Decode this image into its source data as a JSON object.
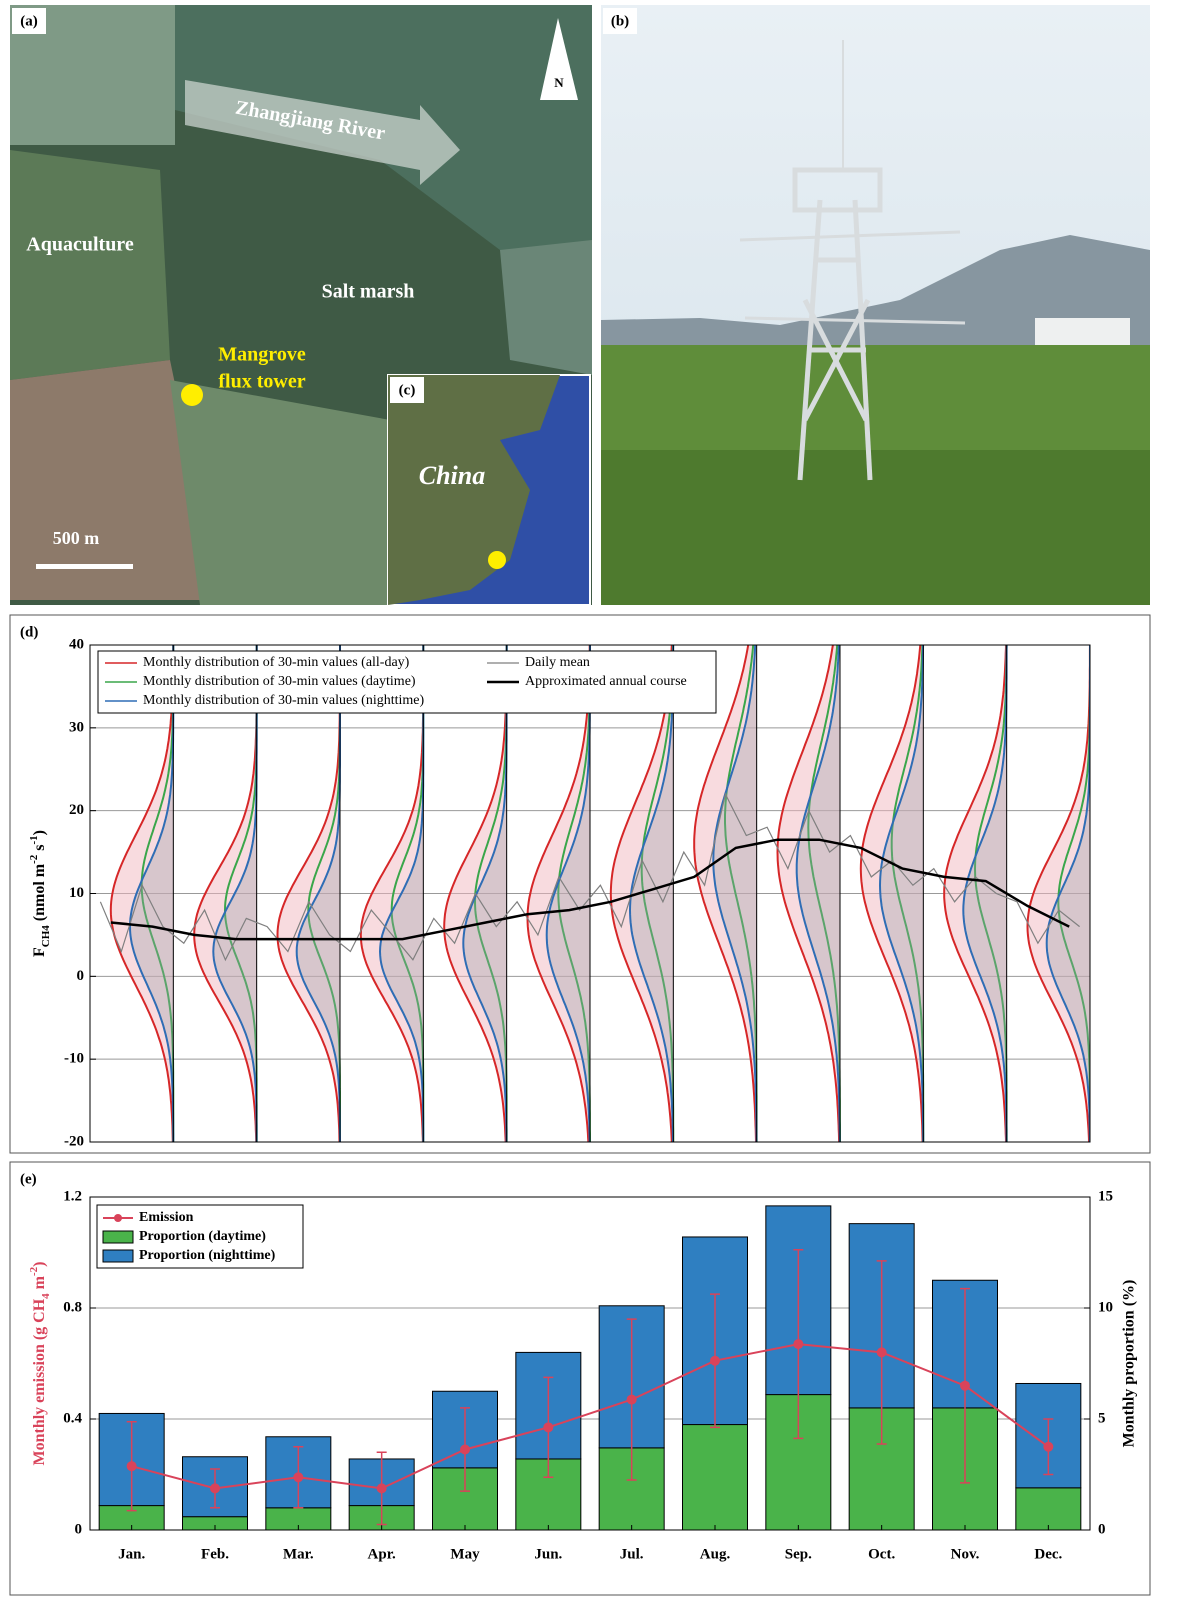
{
  "panels": {
    "a": {
      "label": "(a)",
      "north": "N",
      "river": "Zhangjiang River",
      "aquaculture": "Aquaculture",
      "salt_marsh": "Salt marsh",
      "tower": [
        "Mangrove",
        "flux tower"
      ],
      "scale": "500 m"
    },
    "b": {
      "label": "(b)"
    },
    "c": {
      "label": "(c)",
      "country": "China"
    }
  },
  "chart_data": [
    {
      "type": "violin",
      "label": "(d)",
      "ylabel": [
        "F",
        "CH4",
        " (nmol m",
        "-2",
        " s",
        "-1",
        ")"
      ],
      "ylim": [
        -20,
        40
      ],
      "yticks": [
        -20,
        -10,
        0,
        10,
        20,
        30,
        40
      ],
      "grid": true,
      "distributions": [
        {
          "name": "Monthly distribution of 30-min values (all-day)",
          "color": "#d62728",
          "mode": [
            8,
            5,
            5,
            5,
            6,
            7,
            10,
            16,
            15,
            13,
            10,
            6
          ],
          "sd": [
            9,
            8,
            8,
            8,
            9,
            10,
            11,
            12,
            12,
            11,
            10,
            9
          ]
        },
        {
          "name": "Monthly distribution of 30-min values (daytime)",
          "color": "#3aa64a",
          "mode": [
            11,
            8,
            8,
            8,
            9,
            10,
            13,
            19,
            18,
            16,
            13,
            9
          ],
          "sd": [
            7,
            6,
            6,
            6,
            7,
            8,
            9,
            10,
            10,
            9,
            8,
            7
          ]
        },
        {
          "name": "Monthly distribution of 30-min values (nighttime)",
          "color": "#2f6db5",
          "mode": [
            6,
            3,
            3,
            3,
            4,
            5,
            8,
            14,
            13,
            11,
            8,
            4
          ],
          "sd": [
            7,
            6,
            6,
            6,
            7,
            8,
            9,
            10,
            10,
            9,
            8,
            7
          ]
        }
      ],
      "lines": [
        {
          "name": "Daily mean",
          "color": "#7f7f7f",
          "values": [
            9,
            3,
            11,
            6,
            4,
            8,
            2,
            7,
            6,
            3,
            9,
            5,
            3,
            8,
            5,
            2,
            7,
            4,
            10,
            6,
            9,
            5,
            12,
            8,
            11,
            6,
            14,
            9,
            15,
            11,
            22,
            17,
            18,
            13,
            20,
            15,
            17,
            12,
            14,
            11,
            13,
            9,
            12,
            10,
            9,
            4,
            8,
            6
          ]
        },
        {
          "name": "Approximated annual course",
          "color": "#000000",
          "values": [
            6.5,
            6,
            5,
            4.5,
            4.5,
            4.5,
            4.5,
            4.5,
            5.5,
            6.5,
            7.5,
            8,
            9,
            10.5,
            12,
            15.5,
            16.5,
            16.5,
            15.5,
            13,
            12,
            11.5,
            8.5,
            6
          ]
        }
      ]
    },
    {
      "type": "bar",
      "label": "(e)",
      "categories": [
        "Jan.",
        "Feb.",
        "Mar.",
        "Apr.",
        "May",
        "Jun.",
        "Jul.",
        "Aug.",
        "Sep.",
        "Oct.",
        "Nov.",
        "Dec."
      ],
      "ylabel": [
        "Monthly emission (g CH",
        "4",
        " m",
        "-2",
        ")"
      ],
      "y2label": "Monthly proportion (%)",
      "ylim": [
        0,
        1.2
      ],
      "yticks": [
        0,
        0.4,
        0.8,
        1.2
      ],
      "y2lim": [
        0,
        15
      ],
      "y2ticks": [
        0,
        5,
        10,
        15
      ],
      "grid": true,
      "legend": "upper left",
      "series": [
        {
          "name": "Emission",
          "color": "#d9435a",
          "axis": "y",
          "values": [
            0.23,
            0.15,
            0.19,
            0.15,
            0.29,
            0.37,
            0.47,
            0.61,
            0.67,
            0.64,
            0.52,
            0.3
          ],
          "errors": [
            0.16,
            0.07,
            0.11,
            0.13,
            0.15,
            0.18,
            0.29,
            0.24,
            0.34,
            0.33,
            0.35,
            0.1
          ]
        },
        {
          "name": "Proportion (daytime)",
          "color": "#4ab34a",
          "axis": "y2",
          "values": [
            1.1,
            0.6,
            1.0,
            1.1,
            2.8,
            3.2,
            3.7,
            4.75,
            6.1,
            5.5,
            5.5,
            1.9
          ]
        },
        {
          "name": "Proportion (nighttime)",
          "color": "#2f7fc1",
          "axis": "y2",
          "values": [
            4.15,
            2.7,
            3.2,
            2.1,
            3.45,
            4.8,
            6.4,
            8.45,
            8.5,
            8.3,
            5.75,
            4.7
          ]
        }
      ]
    }
  ]
}
